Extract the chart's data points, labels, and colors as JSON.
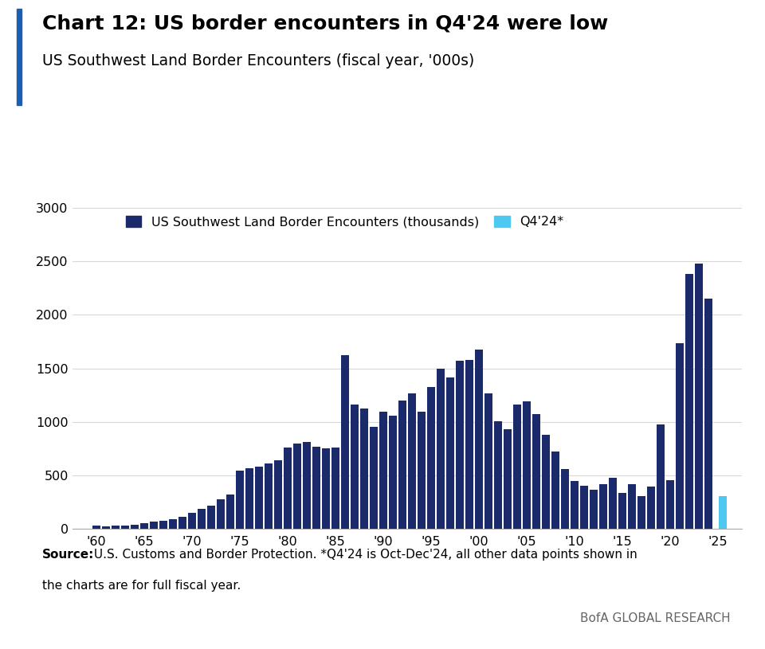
{
  "title": "Chart 12: US border encounters in Q4'24 were low",
  "subtitle": "US Southwest Land Border Encounters (fiscal year, '000s)",
  "source_line1": "Source: U.S. Customs and Border Protection. *Q4․24 is Oct-Dec․24, all other data points shown in",
  "source_line2": "the charts are for full fiscal year.",
  "source_bold": "Source:",
  "branding": "BofA GLOBAL RESEARCH",
  "bar_color": "#1b2a6b",
  "q4_color": "#4dc8f0",
  "years": [
    1960,
    1961,
    1962,
    1963,
    1964,
    1965,
    1966,
    1967,
    1968,
    1969,
    1970,
    1971,
    1972,
    1973,
    1974,
    1975,
    1976,
    1977,
    1978,
    1979,
    1980,
    1981,
    1982,
    1983,
    1984,
    1985,
    1986,
    1987,
    1988,
    1989,
    1990,
    1991,
    1992,
    1993,
    1994,
    1995,
    1996,
    1997,
    1998,
    1999,
    2000,
    2001,
    2002,
    2003,
    2004,
    2005,
    2006,
    2007,
    2008,
    2009,
    2010,
    2011,
    2012,
    2013,
    2014,
    2015,
    2016,
    2017,
    2018,
    2019,
    2020,
    2021,
    2022,
    2023,
    2024
  ],
  "values": [
    30,
    27,
    30,
    35,
    42,
    52,
    65,
    78,
    90,
    112,
    152,
    188,
    220,
    280,
    320,
    545,
    570,
    582,
    610,
    640,
    760,
    800,
    810,
    770,
    750,
    760,
    1625,
    1160,
    1125,
    950,
    1092,
    1060,
    1200,
    1263,
    1094,
    1325,
    1500,
    1414,
    1568,
    1579,
    1676,
    1267,
    1002,
    931,
    1160,
    1190,
    1072,
    877,
    724,
    556,
    448,
    400,
    364,
    420,
    479,
    337,
    415,
    310,
    397,
    977,
    458,
    1734,
    2378,
    2476,
    2148
  ],
  "q4_2024_value": 310,
  "ylim": [
    0,
    3000
  ],
  "yticks": [
    0,
    500,
    1000,
    1500,
    2000,
    2500,
    3000
  ],
  "xtick_years": [
    1960,
    1965,
    1970,
    1975,
    1980,
    1985,
    1990,
    1995,
    2000,
    2005,
    2010,
    2015,
    2020,
    2025
  ],
  "legend_label_main": "US Southwest Land Border Encounters (thousands)",
  "legend_label_q4": "Q4'24*",
  "accent_color": "#1a5fb4",
  "title_fontsize": 18,
  "subtitle_fontsize": 13.5,
  "source_fontsize": 11,
  "branding_fontsize": 11,
  "tick_fontsize": 11.5
}
